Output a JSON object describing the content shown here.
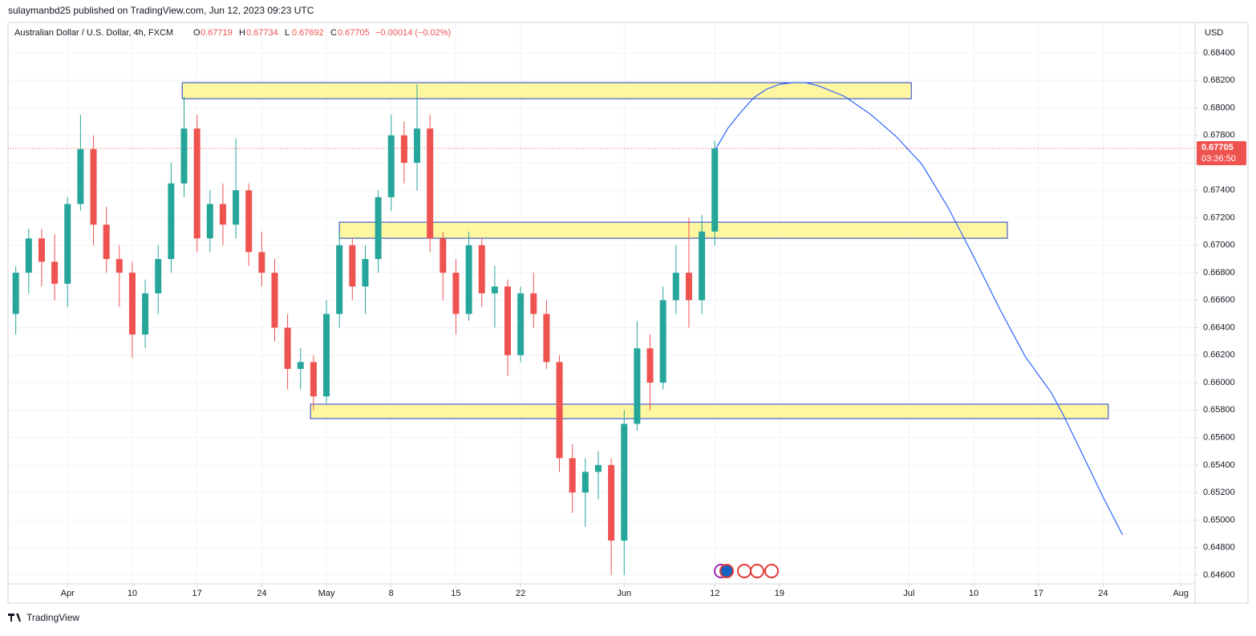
{
  "header": {
    "byline": "sulaymanbd25 published on TradingView.com, Jun 12, 2023 09:23 UTC",
    "brand": "TradingView"
  },
  "chart_data": {
    "type": "candlestick",
    "title": "Australian Dollar / U.S. Dollar, 4h, FXCM",
    "legend_ohlc": [
      {
        "label": "O",
        "value": 0.67719
      },
      {
        "label": "H",
        "value": 0.67734
      },
      {
        "label": "L",
        "value": 0.67692
      },
      {
        "label": "C",
        "value": 0.67705
      }
    ],
    "change": "−0.00014 (−0.02%)",
    "currency": "USD",
    "last_price": 0.67705,
    "countdown": "03:36:50",
    "up_color": "#26a69a",
    "down_color": "#ef5350",
    "grid": true,
    "candles": {
      "x": [
        -4,
        -3,
        -2,
        -1,
        0,
        1,
        2,
        3,
        4,
        5,
        6,
        7,
        8,
        9,
        10,
        11,
        12,
        13,
        14,
        15,
        16,
        17,
        18,
        19,
        20,
        21,
        22,
        23,
        24,
        25,
        26,
        27,
        28,
        29,
        30,
        31,
        32,
        33,
        34,
        35,
        36,
        37,
        38,
        39,
        40,
        41,
        42,
        43,
        44,
        45,
        46,
        47,
        48,
        49,
        50
      ],
      "open": [
        0.665,
        0.668,
        0.6705,
        0.6688,
        0.6672,
        0.673,
        0.677,
        0.6715,
        0.669,
        0.668,
        0.6635,
        0.6665,
        0.669,
        0.6745,
        0.6785,
        0.6705,
        0.673,
        0.6715,
        0.674,
        0.6695,
        0.668,
        0.664,
        0.661,
        0.6615,
        0.659,
        0.665,
        0.67,
        0.667,
        0.669,
        0.6735,
        0.678,
        0.676,
        0.6785,
        0.6705,
        0.668,
        0.665,
        0.67,
        0.6665,
        0.667,
        0.662,
        0.6665,
        0.665,
        0.6615,
        0.6545,
        0.652,
        0.6535,
        0.654,
        0.6485,
        0.657,
        0.6625,
        0.66,
        0.666,
        0.668,
        0.666,
        0.671
      ],
      "high": [
        0.6685,
        0.6712,
        0.6712,
        0.6708,
        0.6735,
        0.6795,
        0.678,
        0.6728,
        0.67,
        0.6688,
        0.6675,
        0.67,
        0.676,
        0.6808,
        0.6795,
        0.674,
        0.6745,
        0.6778,
        0.6745,
        0.671,
        0.669,
        0.665,
        0.6625,
        0.662,
        0.666,
        0.671,
        0.6705,
        0.67,
        0.674,
        0.6795,
        0.679,
        0.6817,
        0.6795,
        0.671,
        0.669,
        0.671,
        0.6705,
        0.6685,
        0.6675,
        0.667,
        0.668,
        0.666,
        0.662,
        0.6555,
        0.6545,
        0.655,
        0.6545,
        0.658,
        0.6645,
        0.6635,
        0.667,
        0.67,
        0.672,
        0.6722,
        0.6776
      ],
      "low": [
        0.6635,
        0.6665,
        0.667,
        0.666,
        0.6655,
        0.6725,
        0.67,
        0.668,
        0.6655,
        0.6618,
        0.6625,
        0.665,
        0.668,
        0.6735,
        0.6695,
        0.6695,
        0.67,
        0.6705,
        0.6685,
        0.667,
        0.663,
        0.6595,
        0.6595,
        0.658,
        0.6585,
        0.664,
        0.666,
        0.665,
        0.668,
        0.6725,
        0.6745,
        0.674,
        0.6695,
        0.666,
        0.6635,
        0.6645,
        0.6655,
        0.664,
        0.6605,
        0.6615,
        0.664,
        0.661,
        0.6535,
        0.6505,
        0.6495,
        0.6515,
        0.646,
        0.646,
        0.6565,
        0.658,
        0.6595,
        0.665,
        0.664,
        0.665,
        0.67
      ],
      "close": [
        0.668,
        0.6705,
        0.6688,
        0.6672,
        0.673,
        0.677,
        0.6715,
        0.669,
        0.668,
        0.6635,
        0.6665,
        0.669,
        0.6745,
        0.6785,
        0.6705,
        0.673,
        0.6715,
        0.674,
        0.6695,
        0.668,
        0.664,
        0.661,
        0.6615,
        0.659,
        0.665,
        0.67,
        0.667,
        0.669,
        0.6735,
        0.678,
        0.676,
        0.6785,
        0.6705,
        0.668,
        0.665,
        0.67,
        0.6665,
        0.667,
        0.662,
        0.6665,
        0.665,
        0.6615,
        0.6545,
        0.652,
        0.6535,
        0.654,
        0.6485,
        0.657,
        0.6625,
        0.66,
        0.666,
        0.668,
        0.666,
        0.671,
        0.67705
      ]
    },
    "zones": [
      {
        "x": [
          8.86,
          65.18
        ],
        "y": [
          0.68067,
          0.68184
        ]
      },
      {
        "x": [
          21.0,
          72.6
        ],
        "y": [
          0.67051,
          0.67168
        ]
      },
      {
        "x": [
          18.77,
          80.4
        ],
        "y": [
          0.65738,
          0.65843
        ]
      }
    ],
    "zone_fill": "#fff59d",
    "zone_border": "#1e40c8",
    "projection": {
      "color": "#2962ff",
      "x": [
        50.1,
        51,
        52,
        53,
        54,
        55,
        56,
        57,
        58,
        60,
        62,
        64,
        66,
        68,
        70,
        72,
        74,
        76,
        77,
        78,
        80,
        81.5
      ],
      "y": [
        0.67705,
        0.67851,
        0.67968,
        0.68073,
        0.68137,
        0.68172,
        0.68184,
        0.68184,
        0.68161,
        0.68085,
        0.67956,
        0.67793,
        0.67589,
        0.67279,
        0.66917,
        0.66538,
        0.66187,
        0.65925,
        0.6575,
        0.65557,
        0.65166,
        0.64892
      ]
    },
    "xlim": [
      -4.6,
      87.1
    ],
    "xticks": [
      {
        "value": 0,
        "label": "Apr"
      },
      {
        "value": 5,
        "label": "10"
      },
      {
        "value": 10,
        "label": "17"
      },
      {
        "value": 15,
        "label": "24"
      },
      {
        "value": 20,
        "label": "May"
      },
      {
        "value": 25,
        "label": "8"
      },
      {
        "value": 30,
        "label": "15"
      },
      {
        "value": 35,
        "label": "22"
      },
      {
        "value": 43,
        "label": "Jun"
      },
      {
        "value": 50,
        "label": "12"
      },
      {
        "value": 55,
        "label": "19"
      },
      {
        "value": 65,
        "label": "Jul"
      },
      {
        "value": 70,
        "label": "10"
      },
      {
        "value": 75,
        "label": "17"
      },
      {
        "value": 80,
        "label": "24"
      },
      {
        "value": 86,
        "label": "Aug"
      }
    ],
    "ylim": [
      0.64535,
      0.68622
    ],
    "yticks": [
      {
        "value": 0.646,
        "label": "0.64600"
      },
      {
        "value": 0.648,
        "label": "0.64800"
      },
      {
        "value": 0.65,
        "label": "0.65000"
      },
      {
        "value": 0.652,
        "label": "0.65200"
      },
      {
        "value": 0.654,
        "label": "0.65400"
      },
      {
        "value": 0.656,
        "label": "0.65600"
      },
      {
        "value": 0.658,
        "label": "0.65800"
      },
      {
        "value": 0.66,
        "label": "0.66000"
      },
      {
        "value": 0.662,
        "label": "0.66200"
      },
      {
        "value": 0.664,
        "label": "0.66400"
      },
      {
        "value": 0.666,
        "label": "0.66600"
      },
      {
        "value": 0.668,
        "label": "0.66800"
      },
      {
        "value": 0.67,
        "label": "0.67000"
      },
      {
        "value": 0.672,
        "label": "0.67200"
      },
      {
        "value": 0.674,
        "label": "0.67400"
      },
      {
        "value": 0.676,
        "label": "0.67600"
      },
      {
        "value": 0.678,
        "label": "0.67800"
      },
      {
        "value": 0.68,
        "label": "0.68000"
      },
      {
        "value": 0.682,
        "label": "0.68200"
      },
      {
        "value": 0.684,
        "label": "0.68400"
      }
    ]
  }
}
